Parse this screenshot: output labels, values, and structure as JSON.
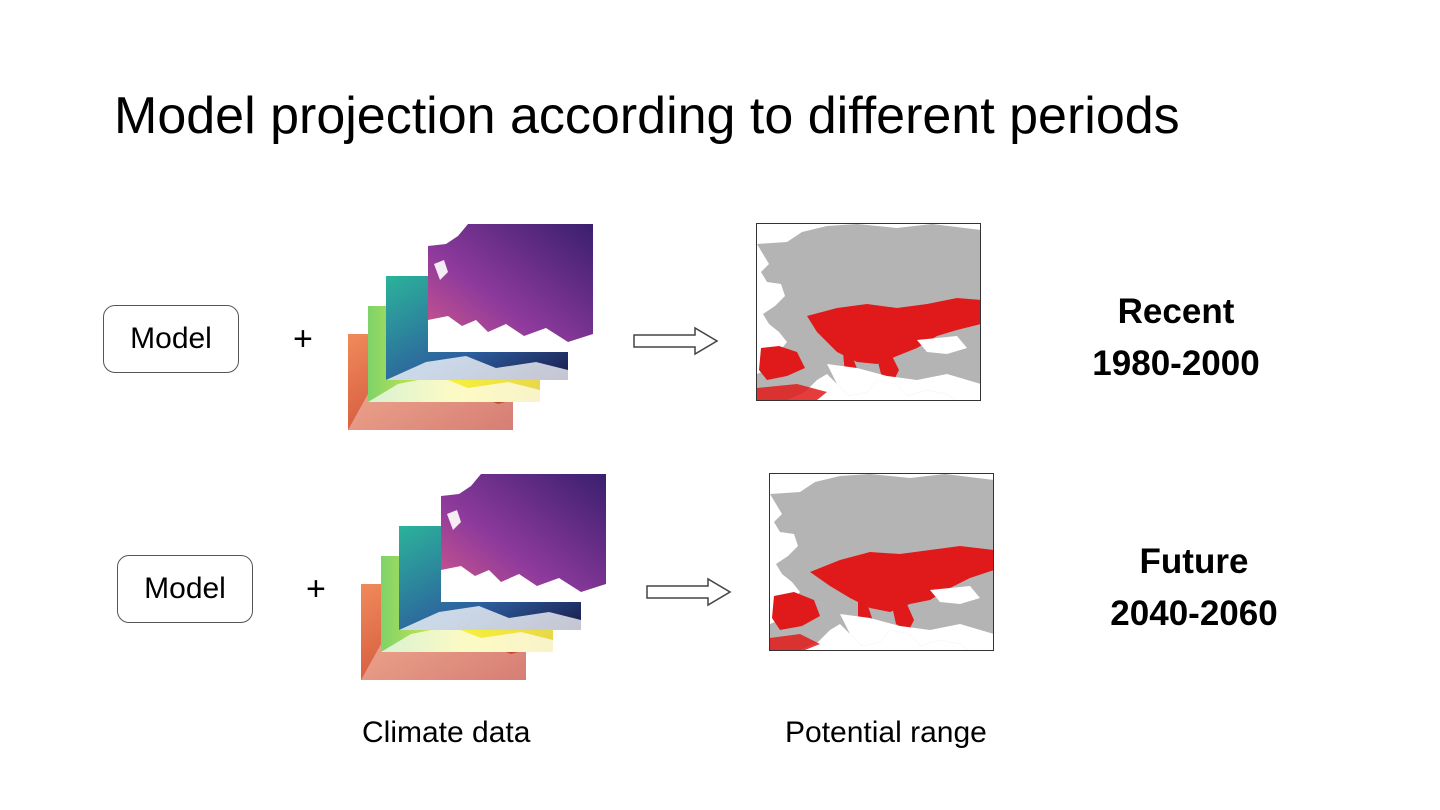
{
  "slide": {
    "title": "Model projection according to different periods"
  },
  "rows": [
    {
      "model_label": "Model",
      "plus": "+",
      "period_name": "Recent",
      "period_years": "1980-2000"
    },
    {
      "model_label": "Model",
      "plus": "+",
      "period_name": "Future",
      "period_years": "2040-2060"
    }
  ],
  "captions": {
    "climate": "Climate data",
    "range": "Potential range"
  },
  "colors": {
    "range_land": "#b4b4b4",
    "range_presence": "#e01a1a",
    "sea": "#ffffff"
  }
}
